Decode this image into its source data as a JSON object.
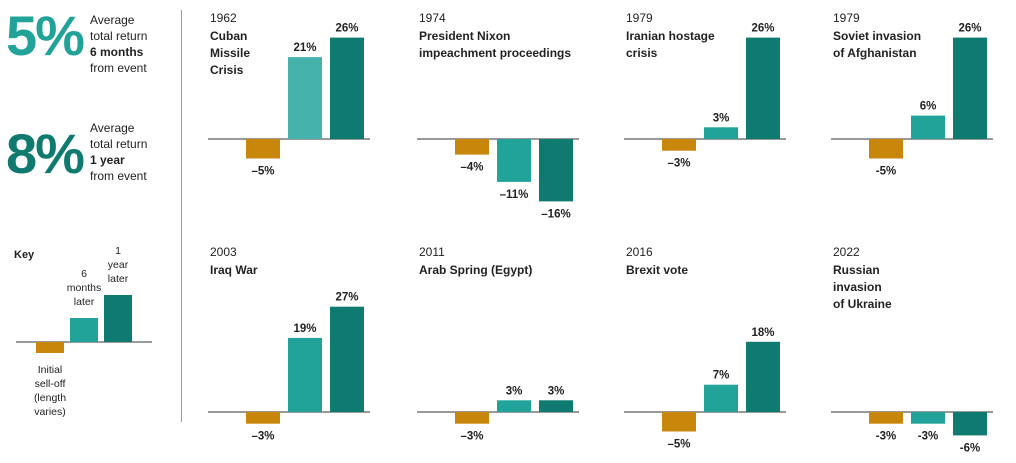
{
  "colors": {
    "selloff": "#C8860B",
    "six_months": "#22A39A",
    "six_months_panel1": "#45B2AC",
    "one_year": "#0F7A70",
    "stat_5": "#22A39A",
    "stat_8": "#0F7A70"
  },
  "stats": [
    {
      "value": "5%",
      "line1": "Average",
      "line2": "total return",
      "line3": "6 months",
      "line4": "from event"
    },
    {
      "value": "8%",
      "line1": "Average",
      "line2": "total return",
      "line3": "1 year",
      "line4": "from event"
    }
  ],
  "key": {
    "title": "Key",
    "selloff_label": [
      "Initial",
      "sell-off",
      "(length",
      "varies)"
    ],
    "six_months_label": [
      "6",
      "months",
      "later"
    ],
    "one_year_label": [
      "1",
      "year",
      "later"
    ]
  },
  "chart_data": {
    "type": "bar",
    "series_names": [
      "Initial sell-off (length varies)",
      "6 months later",
      "1 year later"
    ],
    "panels": [
      {
        "year": "1962",
        "title": [
          "Cuban",
          "Missile",
          "Crisis"
        ],
        "values": [
          -5,
          21,
          26
        ],
        "labels": [
          "–5%",
          "21%",
          "26%"
        ]
      },
      {
        "year": "1974",
        "title": [
          "President Nixon",
          "impeachment proceedings"
        ],
        "values": [
          -4,
          -11,
          -16
        ],
        "labels": [
          "–4%",
          "–11%",
          "–16%"
        ]
      },
      {
        "year": "1979",
        "title": [
          "Iranian hostage",
          "crisis"
        ],
        "values": [
          -3,
          3,
          26
        ],
        "labels": [
          "–3%",
          "3%",
          "26%"
        ]
      },
      {
        "year": "1979",
        "title": [
          "Soviet invasion",
          "of Afghanistan"
        ],
        "values": [
          -5,
          6,
          26
        ],
        "labels": [
          "-5%",
          "6%",
          "26%"
        ]
      },
      {
        "year": "2003",
        "title": [
          "Iraq War"
        ],
        "values": [
          -3,
          19,
          27
        ],
        "labels": [
          "–3%",
          "19%",
          "27%"
        ]
      },
      {
        "year": "2011",
        "title": [
          "Arab Spring (Egypt)"
        ],
        "values": [
          -3,
          3,
          3
        ],
        "labels": [
          "–3%",
          "3%",
          "3%"
        ]
      },
      {
        "year": "2016",
        "title": [
          "Brexit vote"
        ],
        "values": [
          -5,
          7,
          18
        ],
        "labels": [
          "–5%",
          "7%",
          "18%"
        ]
      },
      {
        "year": "2022",
        "title": [
          "Russian",
          "invasion",
          "of Ukraine"
        ],
        "values": [
          -3,
          -3,
          -6
        ],
        "labels": [
          "-3%",
          "-3%",
          "-6%"
        ]
      }
    ]
  }
}
